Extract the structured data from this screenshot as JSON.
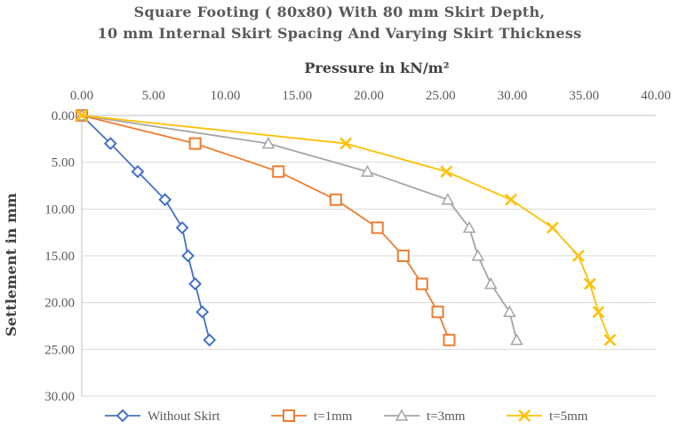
{
  "chart_data": {
    "type": "line",
    "title": "Square Footing ( 80x80) With 80 mm Skirt Depth,",
    "subtitle": "10 mm Internal Skirt Spacing And Varying Skirt Thickness",
    "xlabel": "Pressure in kN/m²",
    "ylabel": "Settlement in mm",
    "xlim": [
      0,
      40
    ],
    "ylim": [
      0,
      30
    ],
    "x_axis_position": "top",
    "y_axis_inverted": true,
    "x_ticks": [
      "0.00",
      "5.00",
      "10.00",
      "15.00",
      "20.00",
      "25.00",
      "30.00",
      "35.00",
      "40.00"
    ],
    "y_ticks": [
      "0.00",
      "5.00",
      "10.00",
      "15.00",
      "20.00",
      "25.00",
      "30.00"
    ],
    "grid": "horizontal",
    "legend_position": "bottom",
    "series": [
      {
        "name": "Without Skirt",
        "marker": "diamond",
        "color": "#4472C4",
        "points": [
          [
            0,
            0
          ],
          [
            2.0,
            3
          ],
          [
            3.9,
            6
          ],
          [
            5.8,
            9
          ],
          [
            7.0,
            12
          ],
          [
            7.4,
            15
          ],
          [
            7.9,
            18
          ],
          [
            8.4,
            21
          ],
          [
            8.9,
            24
          ]
        ]
      },
      {
        "name": "t=1mm",
        "marker": "square",
        "color": "#ED7D31",
        "points": [
          [
            0,
            0
          ],
          [
            7.9,
            3
          ],
          [
            13.7,
            6
          ],
          [
            17.7,
            9
          ],
          [
            20.6,
            12
          ],
          [
            22.4,
            15
          ],
          [
            23.7,
            18
          ],
          [
            24.8,
            21
          ],
          [
            25.6,
            24
          ]
        ]
      },
      {
        "name": "t=3mm",
        "marker": "triangle",
        "color": "#A5A5A5",
        "points": [
          [
            0,
            0
          ],
          [
            13.0,
            3
          ],
          [
            19.9,
            6
          ],
          [
            25.5,
            9
          ],
          [
            27.0,
            12
          ],
          [
            27.6,
            15
          ],
          [
            28.5,
            18
          ],
          [
            29.8,
            21
          ],
          [
            30.3,
            24
          ]
        ]
      },
      {
        "name": "t=5mm",
        "marker": "x",
        "color": "#FFC000",
        "points": [
          [
            0,
            0
          ],
          [
            18.4,
            3
          ],
          [
            25.4,
            6
          ],
          [
            29.9,
            9
          ],
          [
            32.8,
            12
          ],
          [
            34.6,
            15
          ],
          [
            35.4,
            18
          ],
          [
            36.0,
            21
          ],
          [
            36.8,
            24
          ]
        ]
      }
    ]
  }
}
